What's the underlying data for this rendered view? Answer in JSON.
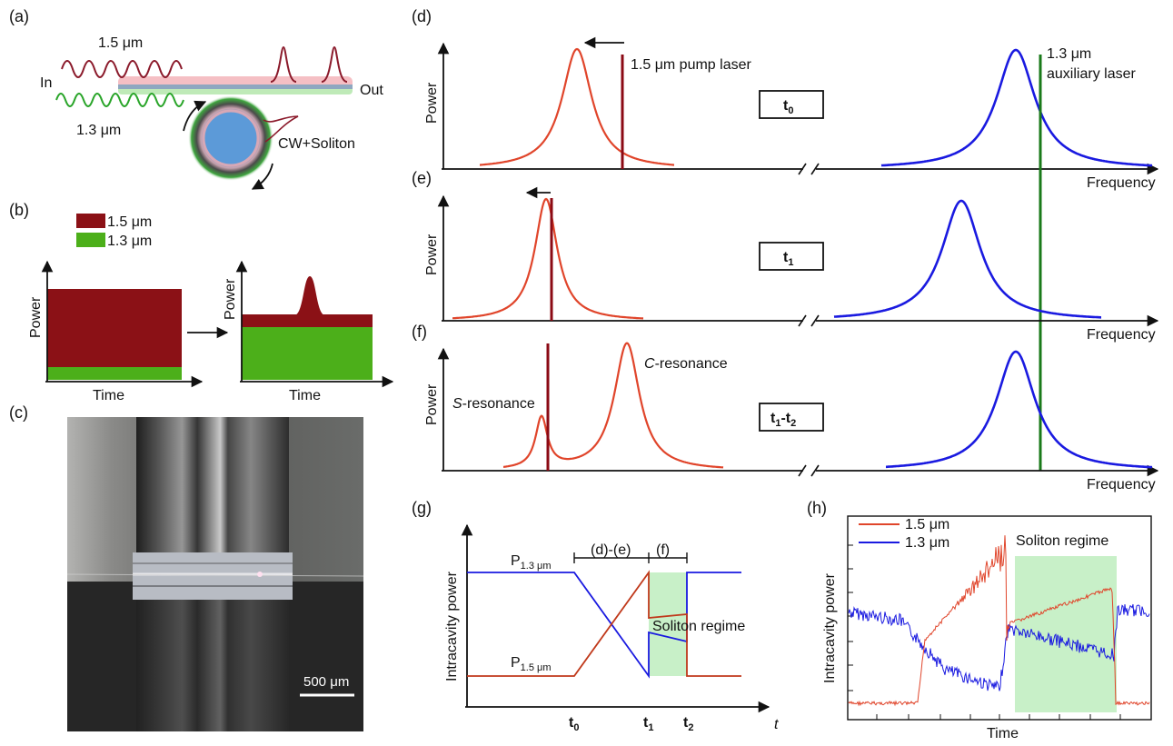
{
  "panel_labels": {
    "a": "(a)",
    "b": "(b)",
    "c": "(c)",
    "d": "(d)",
    "e": "(e)",
    "f": "(f)",
    "g": "(g)",
    "h": "(h)"
  },
  "panel_a": {
    "wave_red_label": "1.5 μm",
    "wave_green_label": "1.3 μm",
    "in_label": "In",
    "out_label": "Out",
    "ring_label": "CW+Soliton",
    "colors": {
      "red": "#8b1a2b",
      "green": "#2aa52a"
    }
  },
  "panel_b": {
    "legend": [
      {
        "label": "1.5 μm",
        "color": "#8b1116"
      },
      {
        "label": "1.3 μm",
        "color": "#4caf1a"
      }
    ],
    "left_ylabel": "Power",
    "left_xlabel": "Time",
    "right_ylabel": "Power",
    "right_xlabel": "Time"
  },
  "panel_c": {
    "scale_bar": "500 μm"
  },
  "panel_def": {
    "ylabel": "Power",
    "xlabel": "Frequency",
    "pump_label": "1.5 μm pump laser",
    "aux_label_line1": "1.3 μm",
    "aux_label_line2": "auxiliary laser",
    "time_d": "t",
    "time_d_sub": "0",
    "time_e": "t",
    "time_e_sub": "1",
    "time_f_a": "t",
    "time_f_a_sub": "1",
    "time_f_b": "-t",
    "time_f_b_sub": "2",
    "s_res_italic": "S",
    "s_res_rest": "-resonance",
    "c_res_italic": "C",
    "c_res_rest": "-resonance",
    "colors": {
      "red_res": "#e0452b",
      "blue_res": "#1a1ae0",
      "pump": "#8b0a14",
      "aux": "#1a7a1a"
    }
  },
  "panel_g": {
    "ylabel": "Intracavity power",
    "xlabel_t": "t",
    "p13_main": "P",
    "p13_sub": "1.3 μm",
    "p15_main": "P",
    "p15_sub": "1.5 μm",
    "bracket_de": "(d)-(e)",
    "bracket_f": "(f)",
    "soliton": "Soliton regime",
    "t0": "t",
    "t0_sub": "0",
    "t1": "t",
    "t1_sub": "1",
    "t2": "t",
    "t2_sub": "2"
  },
  "panel_h": {
    "ylabel": "Intracavity power",
    "xlabel": "Time",
    "legend": [
      {
        "label": "1.5 μm",
        "color": "#e0452b"
      },
      {
        "label": "1.3 μm",
        "color": "#1a1ae0"
      }
    ],
    "soliton": "Soliton regime"
  }
}
